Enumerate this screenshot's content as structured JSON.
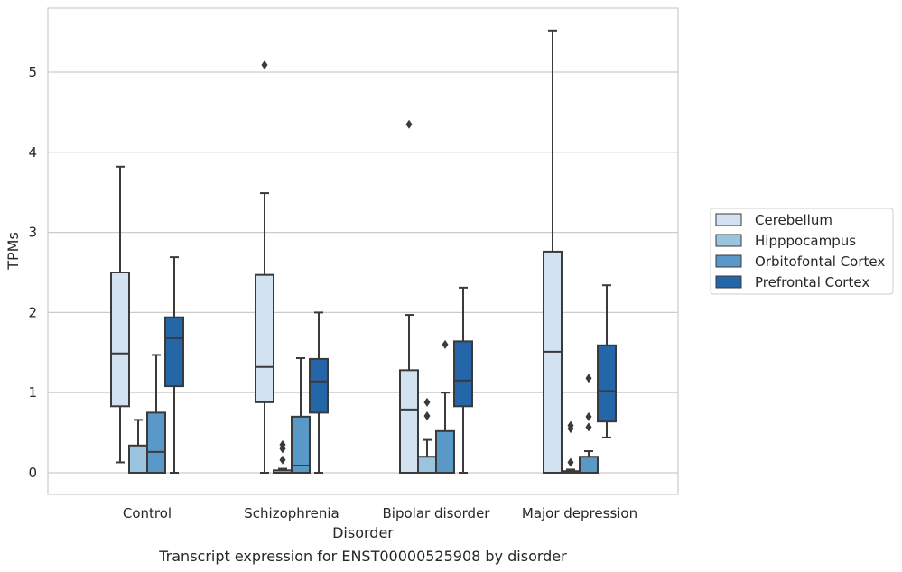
{
  "chart_data": {
    "type": "box",
    "title": "Transcript expression for ENST00000525908 by disorder",
    "xlabel": "Disorder",
    "ylabel": "TPMs",
    "ylim": [
      -0.27,
      5.8
    ],
    "yticks": [
      "0",
      "1",
      "2",
      "3",
      "4",
      "5"
    ],
    "categories": [
      "Control",
      "Schizophrenia",
      "Bipolar disorder",
      "Major depression"
    ],
    "grid": "horizontal",
    "legend_position": "right",
    "series": [
      {
        "name": "Cerebellum",
        "color": "#d2e2f1",
        "boxes": [
          {
            "whislo": 0.13,
            "q1": 0.83,
            "med": 1.49,
            "q3": 2.5,
            "whishi": 3.82,
            "fliers": []
          },
          {
            "whislo": 0.0,
            "q1": 0.88,
            "med": 1.32,
            "q3": 2.47,
            "whishi": 3.49,
            "fliers": [
              5.09
            ]
          },
          {
            "whislo": 0.0,
            "q1": 0.0,
            "med": 0.79,
            "q3": 1.28,
            "whishi": 1.97,
            "fliers": [
              4.35
            ]
          },
          {
            "whislo": 0.0,
            "q1": 0.0,
            "med": 1.51,
            "q3": 2.76,
            "whishi": 5.52,
            "fliers": []
          }
        ]
      },
      {
        "name": "Hipppocampus",
        "color": "#9bc5de",
        "boxes": [
          {
            "whislo": 0.0,
            "q1": 0.0,
            "med": 0.0,
            "q3": 0.34,
            "whishi": 0.66,
            "fliers": []
          },
          {
            "whislo": 0.0,
            "q1": 0.0,
            "med": 0.0,
            "q3": 0.03,
            "whishi": 0.05,
            "fliers": [
              0.16,
              0.3,
              0.35
            ]
          },
          {
            "whislo": 0.0,
            "q1": 0.0,
            "med": 0.0,
            "q3": 0.2,
            "whishi": 0.41,
            "fliers": [
              0.71,
              0.88
            ]
          },
          {
            "whislo": 0.0,
            "q1": 0.0,
            "med": 0.0,
            "q3": 0.02,
            "whishi": 0.04,
            "fliers": [
              0.13,
              0.55,
              0.59
            ]
          }
        ]
      },
      {
        "name": "Orbitofontal Cortex",
        "color": "#5998c7",
        "boxes": [
          {
            "whislo": 0.0,
            "q1": 0.0,
            "med": 0.26,
            "q3": 0.75,
            "whishi": 1.47,
            "fliers": []
          },
          {
            "whislo": 0.0,
            "q1": 0.0,
            "med": 0.09,
            "q3": 0.7,
            "whishi": 1.43,
            "fliers": []
          },
          {
            "whislo": 0.0,
            "q1": 0.0,
            "med": 0.0,
            "q3": 0.52,
            "whishi": 1.0,
            "fliers": [
              1.6
            ]
          },
          {
            "whislo": 0.0,
            "q1": 0.0,
            "med": 0.0,
            "q3": 0.2,
            "whishi": 0.27,
            "fliers": [
              0.57,
              0.7,
              1.18
            ]
          }
        ]
      },
      {
        "name": "Prefrontal Cortex",
        "color": "#2466a8",
        "boxes": [
          {
            "whislo": 0.0,
            "q1": 1.08,
            "med": 1.68,
            "q3": 1.94,
            "whishi": 2.69,
            "fliers": []
          },
          {
            "whislo": 0.0,
            "q1": 0.75,
            "med": 1.14,
            "q3": 1.42,
            "whishi": 2.0,
            "fliers": []
          },
          {
            "whislo": 0.0,
            "q1": 0.83,
            "med": 1.15,
            "q3": 1.64,
            "whishi": 2.31,
            "fliers": []
          },
          {
            "whislo": 0.44,
            "q1": 0.64,
            "med": 1.02,
            "q3": 1.59,
            "whishi": 2.34,
            "fliers": []
          }
        ]
      }
    ]
  }
}
